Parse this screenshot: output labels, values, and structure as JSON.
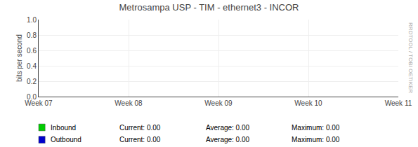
{
  "chart_data": {
    "type": "line",
    "title": "Metrosampa USP - TIM - ethernet3 - INCOR",
    "y_label": "bits per second",
    "xlim": [
      0,
      4
    ],
    "xticks": [
      {
        "value": 0,
        "label": "Week 07"
      },
      {
        "value": 1,
        "label": "Week 08"
      },
      {
        "value": 2,
        "label": "Week 09"
      },
      {
        "value": 3,
        "label": "Week 10"
      },
      {
        "value": 4,
        "label": "Week 11"
      }
    ],
    "ylim": [
      0,
      1.0
    ],
    "yticks": [
      {
        "value": 0,
        "label": "0.0"
      },
      0.2,
      0.4,
      0.6,
      0.8,
      {
        "value": 1.0,
        "label": "1.0"
      }
    ],
    "grid": true,
    "series": [
      {
        "name": "Inbound",
        "color": "#00cc00",
        "x": [],
        "values": [],
        "stats": [
          {
            "name": "Current:",
            "value": 0,
            "label": "0.00"
          },
          {
            "name": "Average:",
            "value": 0,
            "label": "0.00"
          },
          {
            "name": "Maximum:",
            "value": 0,
            "label": "0.00"
          }
        ]
      },
      {
        "name": "Outbound",
        "color": "#0000cc",
        "x": [],
        "values": [],
        "stats": [
          {
            "name": "Current:",
            "value": 0,
            "label": "0.00"
          },
          {
            "name": "Average:",
            "value": 0,
            "label": "0.00"
          },
          {
            "name": "Maximum:",
            "value": 0,
            "label": "0.00"
          }
        ]
      }
    ],
    "annotations": [
      "RRDTOOL / TOBI OETIKER"
    ]
  }
}
